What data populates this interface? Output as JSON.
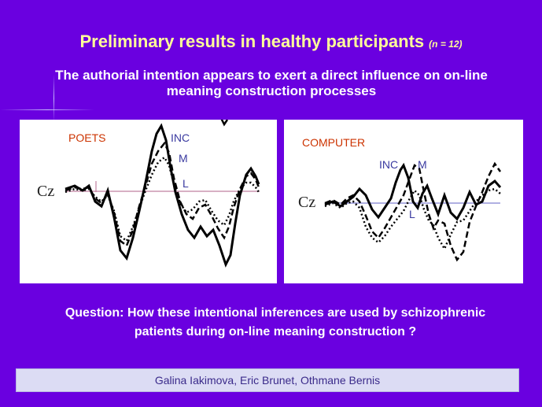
{
  "slide": {
    "title": "Preliminary results in healthy participants",
    "sample_size": "(n = 12)",
    "subtitle": "The authorial intention appears to exert a direct influence on on-line meaning construction processes",
    "question": "Question: How these intentional inferences are used by schizophrenic patients during on-line meaning construction ?",
    "authors": "Galina Iakimova, Eric Brunet, Othmane Bernis"
  },
  "panels": {
    "left": {
      "group_label": "POETS",
      "electrode": "Cz",
      "curve_labels": [
        "INC",
        "M",
        "L"
      ]
    },
    "right": {
      "group_label": "COMPUTER",
      "electrode": "Cz",
      "curve_labels": [
        "INC",
        "M",
        "L"
      ]
    }
  },
  "colors": {
    "background": "#6a00e0",
    "title": "#ffff99",
    "group_label": "#cc3300",
    "curve_label": "#3a3aa0",
    "baseline_left": "#c080a0",
    "baseline_right": "#8080d0",
    "footer_bg": "#dcdcf4",
    "footer_text": "#3a2a8a"
  }
}
